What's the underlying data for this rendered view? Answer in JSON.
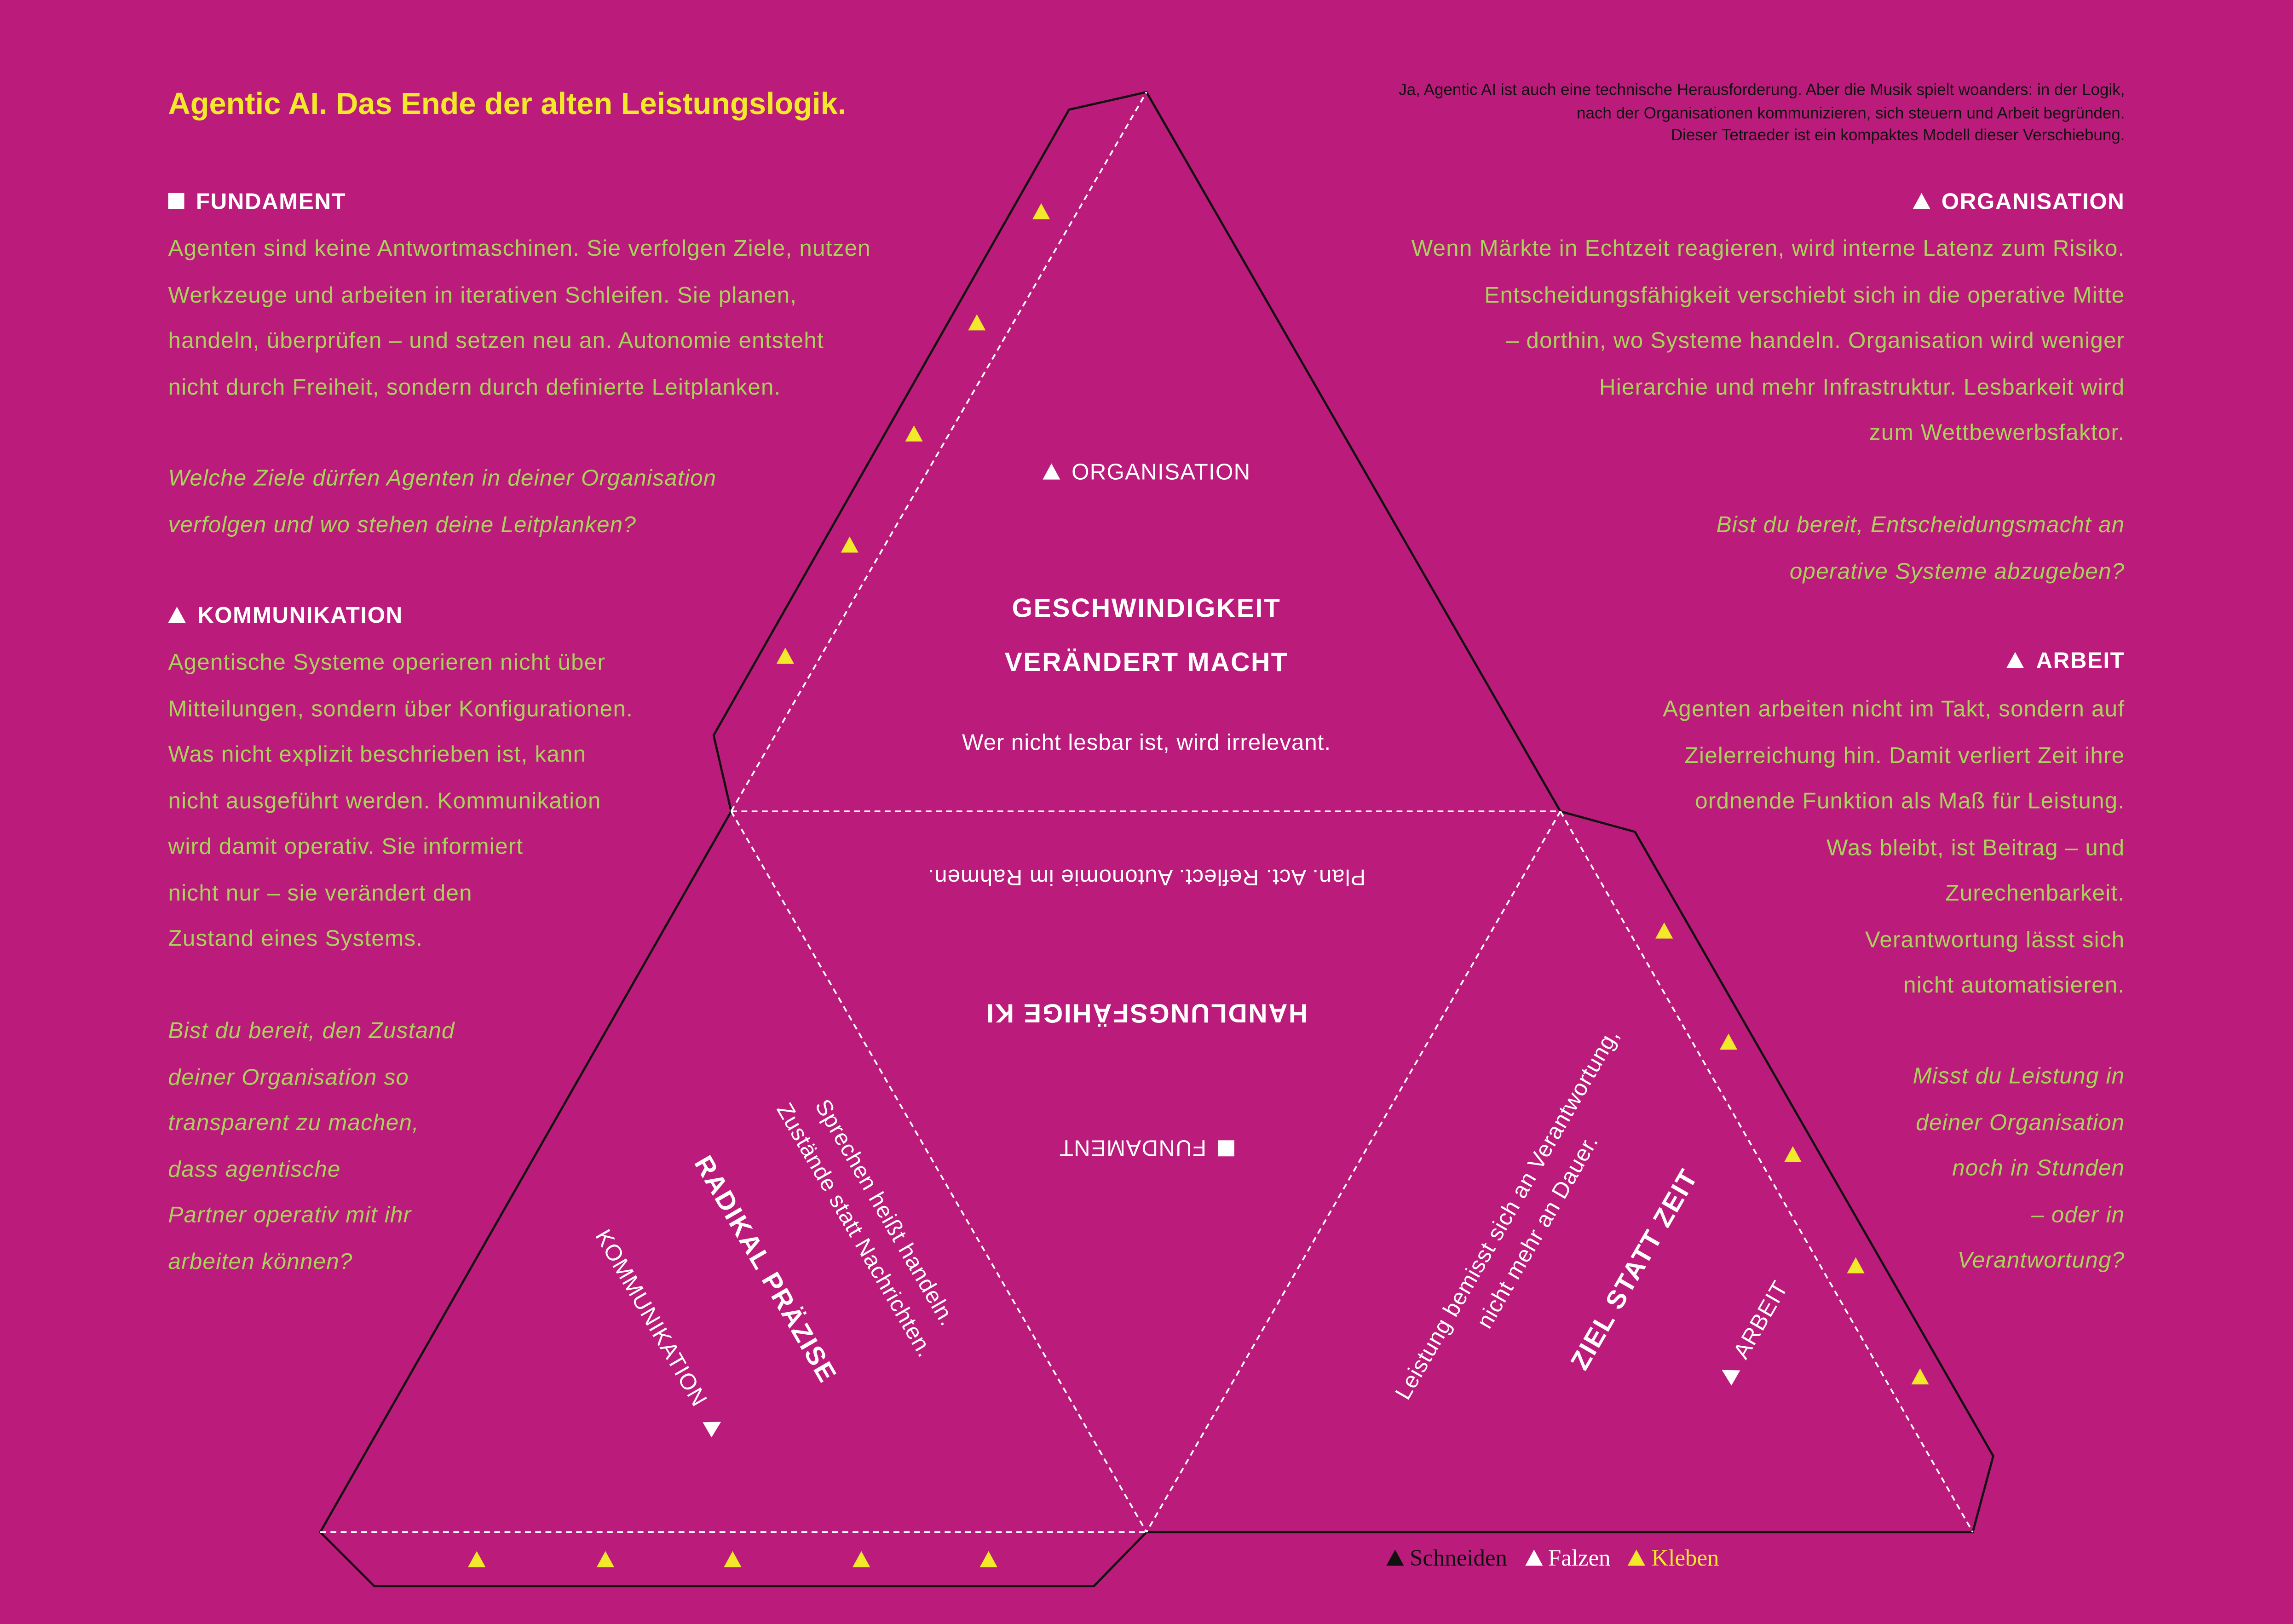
{
  "header": {
    "title": "Agentic AI. Das Ende der alten Leistungslogik.",
    "intro": [
      "Ja, Agentic AI ist auch eine technische Herausforderung. Aber die Musik spielt woanders: in der Logik,",
      "nach der Organisationen kommunizieren, sich steuern und Arbeit begründen.",
      "Dieser Tetraeder ist ein kompaktes Modell dieser Verschiebung."
    ]
  },
  "left_column": [
    {
      "icon": "square-icon",
      "heading": "FUNDAMENT",
      "body": [
        "Agenten sind keine Antwortmaschinen. Sie verfolgen Ziele, nutzen",
        "Werkzeuge und arbeiten in iterativen Schleifen. Sie planen,",
        "handeln, überprüfen – und setzen neu an. Autonomie entsteht",
        "nicht durch Freiheit, sondern durch definierte Leitplanken."
      ],
      "question": [
        "Welche Ziele dürfen Agenten in deiner Organisation",
        "verfolgen und wo stehen deine Leitplanken?"
      ]
    },
    {
      "icon": "triangle-icon",
      "heading": "KOMMUNIKATION",
      "body": [
        "Agentische Systeme operieren nicht über",
        "Mitteilungen, sondern über Konfigurationen.",
        "Was nicht explizit beschrieben ist, kann",
        "nicht ausgeführt werden. Kommunikation",
        "wird damit operativ. Sie informiert",
        "nicht nur – sie verändert den",
        "Zustand eines Systems."
      ],
      "question": [
        "Bist du bereit, den Zustand",
        "deiner Organisation so",
        "transparent zu machen,",
        "dass agentische",
        "Partner operativ mit ihr",
        "arbeiten können?"
      ]
    }
  ],
  "right_column": [
    {
      "icon": "triangle-icon",
      "heading": "ORGANISATION",
      "body": [
        "Wenn Märkte in Echtzeit reagieren, wird interne Latenz zum Risiko.",
        "Entscheidungsfähigkeit verschiebt sich in die operative Mitte",
        "– dorthin, wo Systeme handeln. Organisation wird weniger",
        "Hierarchie und mehr Infrastruktur. Lesbarkeit wird",
        "zum Wettbewerbsfaktor."
      ],
      "question": [
        "Bist du bereit, Entscheidungsmacht an",
        "operative Systeme abzugeben?"
      ]
    },
    {
      "icon": "triangle-icon",
      "heading": "ARBEIT",
      "body": [
        "Agenten arbeiten nicht im Takt, sondern auf",
        "Zielerreichung hin. Damit verliert Zeit ihre",
        "ordnende Funktion als Maß für Leistung.",
        "Was bleibt, ist Beitrag – und",
        "Zurechenbarkeit.",
        "Verantwortung lässt sich",
        "nicht automatisieren."
      ],
      "question": [
        "Misst du Leistung in",
        "deiner Organisation",
        "noch in Stunden",
        "– oder in",
        "Verantwortung?"
      ]
    }
  ],
  "net": {
    "top_face": {
      "label": "ORGANISATION",
      "title": [
        "GESCHWINDIGKEIT",
        "VERÄNDERT MACHT"
      ],
      "subtitle": "Wer nicht lesbar ist, wird irrelevant."
    },
    "center_face": {
      "label": "FUNDAMENT",
      "title": "HANDLUNGSFÄHIGE KI",
      "subtitle": "Plan. Act. Reflect. Autonomie im Rahmen."
    },
    "left_face": {
      "label": "KOMMUNIKATION",
      "title": "RADIKAL PRÄZISE",
      "subtitle": [
        "Sprechen heißt handeln.",
        "Zustände statt Nachrichten."
      ]
    },
    "right_face": {
      "label": "ARBEIT",
      "title": "ZIEL STATT ZEIT",
      "subtitle": [
        "Leistung bemisst sich an Verantwortung,",
        "nicht mehr an Dauer."
      ]
    }
  },
  "legend": [
    {
      "label": "Schneiden",
      "color": "#111111"
    },
    {
      "label": "Falzen",
      "color": "#ffffff"
    },
    {
      "label": "Kleben",
      "color": "#f2e92b"
    }
  ],
  "colors": {
    "background": "#bb1b7a",
    "accent": "#f2e92b",
    "body_text": "#a9d25c",
    "heading": "#ffffff"
  }
}
